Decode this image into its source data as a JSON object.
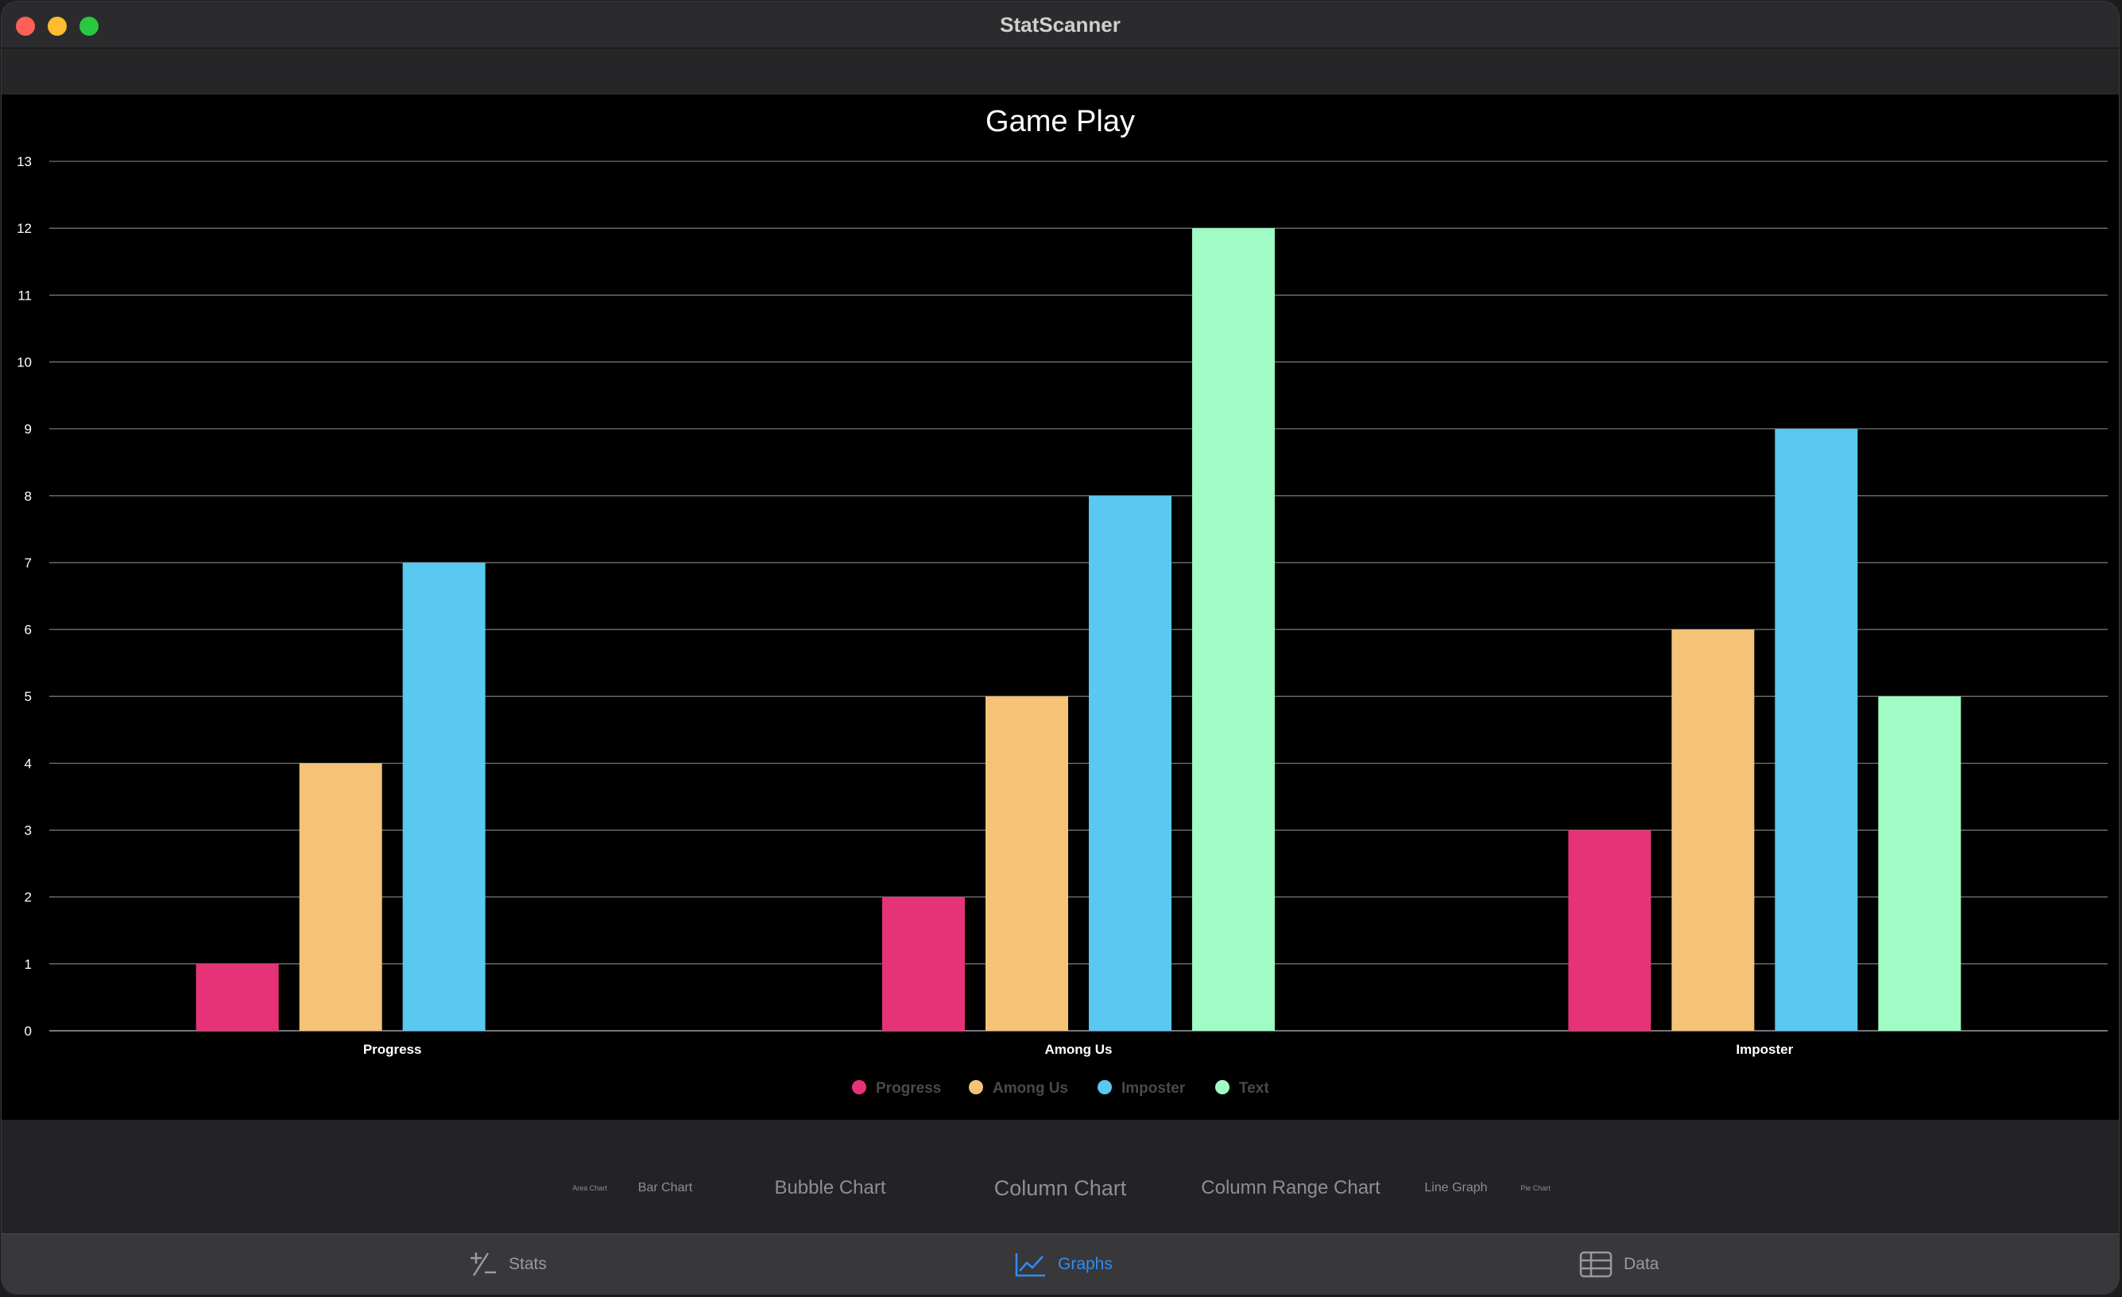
{
  "window": {
    "title": "StatScanner"
  },
  "chart_data": {
    "type": "bar",
    "title": "Game Play",
    "categories": [
      "Progress",
      "Among Us",
      "Imposter"
    ],
    "series": [
      {
        "name": "Progress",
        "color": "#e63377",
        "values": [
          1,
          2,
          3
        ]
      },
      {
        "name": "Among Us",
        "color": "#f4c377",
        "values": [
          4,
          5,
          6
        ]
      },
      {
        "name": "Imposter",
        "color": "#5ac8f0",
        "values": [
          7,
          8,
          9
        ]
      },
      {
        "name": "Text",
        "color": "#9ffcc4",
        "values": [
          null,
          12,
          5
        ]
      }
    ],
    "yticks": [
      "0",
      "1",
      "2",
      "3",
      "4",
      "5",
      "6",
      "7",
      "8",
      "9",
      "10",
      "11",
      "12",
      "13"
    ],
    "ylim": [
      0,
      13
    ],
    "grid": true,
    "legend_position": "bottom"
  },
  "chart_types": {
    "items": [
      {
        "label": "Area Chart"
      },
      {
        "label": "Bar Chart"
      },
      {
        "label": "Bubble Chart"
      },
      {
        "label": "Column Chart"
      },
      {
        "label": "Column Range Chart"
      },
      {
        "label": "Line Graph"
      },
      {
        "label": "Pie Chart"
      }
    ],
    "selected": "Column Chart"
  },
  "tabs": {
    "stats": "Stats",
    "graphs": "Graphs",
    "data": "Data",
    "active": "Graphs"
  }
}
